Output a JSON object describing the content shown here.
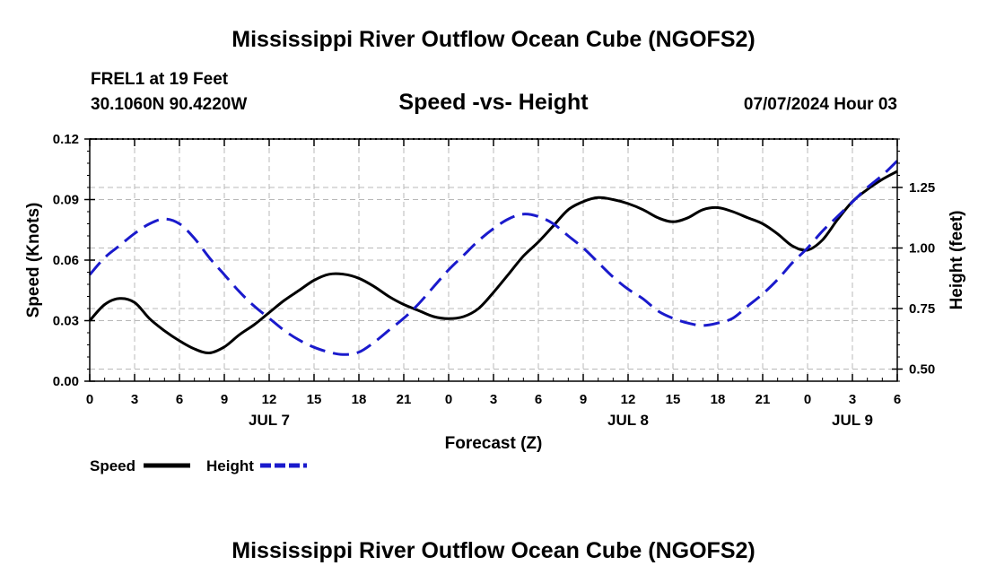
{
  "page": {
    "title_top": "Mississippi River Outflow Ocean Cube (NGOFS2)",
    "title_bottom": "Mississippi River Outflow Ocean Cube (NGOFS2)",
    "station_line": "FREL1 at 19 Feet",
    "coords_line": "30.1060N  90.4220W",
    "subtitle": "Speed -vs- Height",
    "timestamp": "07/07/2024 Hour 03"
  },
  "colors": {
    "speed": "#000000",
    "height": "#1a1acc",
    "grid": "#b8b8b8"
  },
  "chart_data": {
    "type": "line",
    "x_unit": "forecast hours from JUL 6 00Z",
    "xlim": [
      0,
      54
    ],
    "xlabel": "Forecast (Z)",
    "x_ticks": [
      0,
      3,
      6,
      9,
      12,
      15,
      18,
      21,
      24,
      27,
      30,
      33,
      36,
      39,
      42,
      45,
      48,
      51,
      54
    ],
    "x_tick_labels": [
      "0",
      "3",
      "6",
      "9",
      "12",
      "15",
      "18",
      "21",
      "0",
      "3",
      "6",
      "9",
      "12",
      "15",
      "18",
      "21",
      "0",
      "3",
      "6"
    ],
    "day_labels": [
      {
        "x": 12,
        "label": "JUL 7"
      },
      {
        "x": 36,
        "label": "JUL 8"
      },
      {
        "x": 51,
        "label": "JUL 9"
      }
    ],
    "left_axis": {
      "label": "Speed (Knots)",
      "ylim": [
        0,
        0.12
      ],
      "ticks": [
        0,
        0.03,
        0.06,
        0.09,
        0.12
      ],
      "tick_labels": [
        "0.00",
        "0.03",
        "0.06",
        "0.09",
        "0.12"
      ]
    },
    "right_axis": {
      "label": "Height (feet)",
      "ylim": [
        0.45,
        1.45
      ],
      "ticks": [
        0.5,
        0.75,
        1.0,
        1.25
      ],
      "tick_labels": [
        "0.50",
        "0.75",
        "1.00",
        "1.25"
      ]
    },
    "series": [
      {
        "name": "Speed",
        "axis": "left",
        "style": "solid",
        "x": [
          0,
          1,
          2,
          3,
          4,
          5,
          6,
          7,
          8,
          9,
          10,
          11,
          12,
          13,
          14,
          15,
          16,
          17,
          18,
          19,
          20,
          21,
          22,
          23,
          24,
          25,
          26,
          27,
          28,
          29,
          30,
          31,
          32,
          33,
          34,
          35,
          36,
          37,
          38,
          39,
          40,
          41,
          42,
          43,
          44,
          45,
          46,
          47,
          48,
          49,
          50,
          51,
          52,
          53,
          54
        ],
        "values": [
          0.03,
          0.038,
          0.041,
          0.039,
          0.031,
          0.025,
          0.02,
          0.016,
          0.014,
          0.017,
          0.023,
          0.028,
          0.034,
          0.04,
          0.045,
          0.05,
          0.053,
          0.053,
          0.051,
          0.047,
          0.042,
          0.038,
          0.035,
          0.032,
          0.031,
          0.032,
          0.036,
          0.044,
          0.053,
          0.062,
          0.069,
          0.077,
          0.085,
          0.089,
          0.091,
          0.09,
          0.088,
          0.085,
          0.081,
          0.079,
          0.081,
          0.085,
          0.086,
          0.084,
          0.081,
          0.078,
          0.073,
          0.067,
          0.065,
          0.07,
          0.08,
          0.089,
          0.095,
          0.1,
          0.104
        ]
      },
      {
        "name": "Height",
        "axis": "right",
        "style": "dashed",
        "x": [
          0,
          1,
          2,
          3,
          4,
          5,
          6,
          7,
          8,
          9,
          10,
          11,
          12,
          13,
          14,
          15,
          16,
          17,
          18,
          19,
          20,
          21,
          22,
          23,
          24,
          25,
          26,
          27,
          28,
          29,
          30,
          31,
          32,
          33,
          34,
          35,
          36,
          37,
          38,
          39,
          40,
          41,
          42,
          43,
          44,
          45,
          46,
          47,
          48,
          49,
          50,
          51,
          52,
          53,
          54
        ],
        "values": [
          0.89,
          0.96,
          1.01,
          1.06,
          1.1,
          1.12,
          1.1,
          1.04,
          0.96,
          0.89,
          0.82,
          0.76,
          0.71,
          0.66,
          0.62,
          0.59,
          0.57,
          0.56,
          0.57,
          0.61,
          0.66,
          0.71,
          0.77,
          0.84,
          0.91,
          0.97,
          1.03,
          1.08,
          1.12,
          1.14,
          1.13,
          1.1,
          1.05,
          1.0,
          0.94,
          0.88,
          0.83,
          0.79,
          0.74,
          0.71,
          0.69,
          0.68,
          0.69,
          0.71,
          0.76,
          0.81,
          0.87,
          0.94,
          1.0,
          1.07,
          1.13,
          1.19,
          1.25,
          1.3,
          1.36
        ]
      }
    ],
    "legend": [
      {
        "label": "Speed",
        "style": "solid"
      },
      {
        "label": "Height",
        "style": "dashed"
      }
    ]
  }
}
